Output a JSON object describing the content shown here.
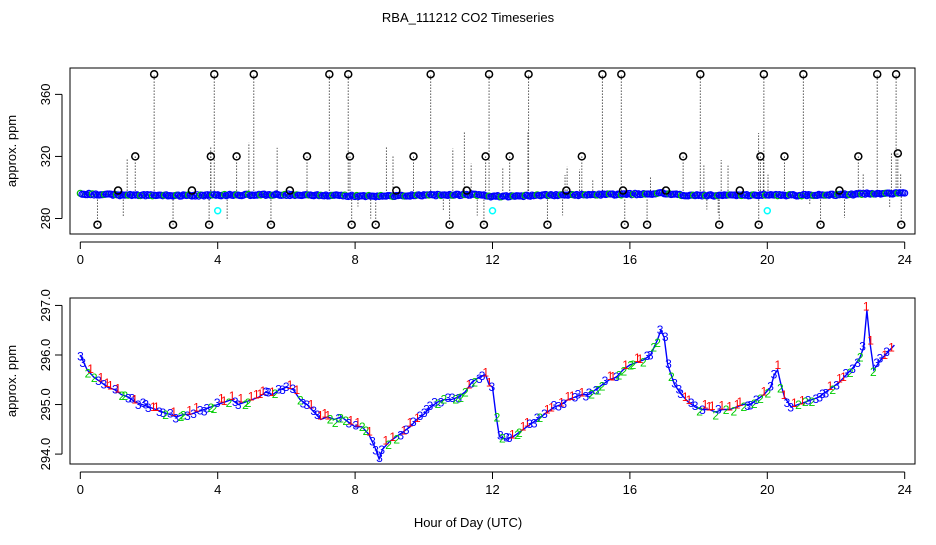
{
  "title": "RBA_111212  CO2 Timeseries",
  "xlabel": "Hour of Day (UTC)",
  "colors": {
    "axis": "#000000",
    "line": "#0000ff",
    "spike": "#000000",
    "open_circle": "#000000",
    "circle_series": "#0000ff",
    "circle_series_alt": "#00c000",
    "cyan_marker": "#00ffff",
    "label_1": "#ff0000",
    "label_2": "#00cc00",
    "label_3": "#0000ff"
  },
  "chart_data": [
    {
      "type": "scatter",
      "ylabel": "approx. ppm",
      "xlim": [
        -0.3,
        24.3
      ],
      "ylim": [
        270,
        377
      ],
      "xticks": [
        0,
        4,
        8,
        12,
        16,
        20,
        24
      ],
      "yticks": [
        280,
        320,
        360
      ],
      "baseline": 296,
      "spike_top": 373,
      "spike_bottom": 276,
      "series": [
        {
          "kind": "dense-baseline",
          "x": [
            0.0,
            0.5,
            1.0,
            1.5,
            2.0,
            2.5,
            3.0,
            3.5,
            4.0,
            4.5,
            5.0,
            5.5,
            6.0,
            6.5,
            7.0,
            7.5,
            8.0,
            8.5,
            9.0,
            9.5,
            10.0,
            10.5,
            11.0,
            11.5,
            12.0,
            12.5,
            13.0,
            13.5,
            14.0,
            14.5,
            15.0,
            15.5,
            16.0,
            16.5,
            17.0,
            17.5,
            18.0,
            18.5,
            19.0,
            19.5,
            20.0,
            20.5,
            21.0,
            21.5,
            22.0,
            22.5,
            23.0,
            23.5,
            23.8
          ],
          "y": [
            296,
            295.5,
            295.2,
            295,
            295,
            294.8,
            294.8,
            294.9,
            295,
            295.1,
            295.2,
            295.3,
            295.3,
            295.1,
            294.9,
            294.8,
            294.5,
            294.3,
            294.5,
            294.8,
            295.0,
            295.1,
            295.2,
            295.4,
            294.2,
            294.4,
            294.7,
            295.0,
            295.1,
            295.2,
            295.3,
            295.4,
            295.7,
            295.9,
            296.3,
            295.1,
            294.9,
            294.9,
            294.9,
            295.0,
            295.3,
            294.9,
            295.0,
            295.1,
            295.3,
            295.5,
            296.2,
            296.0,
            296.2
          ]
        },
        {
          "kind": "spikes",
          "x": [
            0.5,
            1.1,
            1.6,
            2.15,
            2.7,
            3.25,
            3.75,
            3.8,
            3.9,
            4.55,
            5.05,
            5.55,
            6.1,
            6.6,
            7.25,
            7.8,
            7.85,
            7.9,
            8.6,
            9.2,
            9.7,
            10.2,
            10.75,
            11.25,
            11.75,
            11.8,
            11.9,
            12.5,
            13.05,
            13.6,
            14.15,
            14.6,
            15.2,
            15.75,
            15.8,
            15.85,
            16.5,
            17.05,
            17.55,
            18.05,
            18.6,
            19.2,
            19.75,
            19.8,
            19.9,
            20.5,
            21.05,
            21.55,
            22.1,
            22.65,
            23.2,
            23.75,
            23.8,
            23.9
          ],
          "y": [
            276,
            298,
            320,
            373,
            276,
            298,
            276,
            320,
            373,
            320,
            373,
            276,
            298,
            320,
            373,
            373,
            320,
            276,
            276,
            298,
            320,
            373,
            276,
            298,
            276,
            320,
            373,
            320,
            373,
            276,
            298,
            320,
            373,
            373,
            298,
            276,
            276,
            298,
            320,
            373,
            276,
            298,
            276,
            320,
            373,
            320,
            373,
            276,
            298,
            320,
            373,
            373,
            322,
            276
          ]
        },
        {
          "kind": "cyan-markers",
          "x": [
            4.0,
            12.0,
            20.0
          ],
          "y": [
            285,
            285,
            285
          ]
        }
      ]
    },
    {
      "type": "line",
      "ylabel": "approx. ppm",
      "xlim": [
        -0.3,
        24.3
      ],
      "ylim": [
        293.8,
        297.15
      ],
      "xticks": [
        0,
        4,
        8,
        12,
        16,
        20,
        24
      ],
      "yticks": [
        294.0,
        295.0,
        296.0,
        297.0
      ],
      "series": [
        {
          "kind": "co2-line",
          "x": [
            0.0,
            0.2,
            0.4,
            0.6,
            0.8,
            1.0,
            1.2,
            1.4,
            1.6,
            1.8,
            2.0,
            2.2,
            2.4,
            2.6,
            2.8,
            3.0,
            3.2,
            3.4,
            3.6,
            3.8,
            4.0,
            4.2,
            4.4,
            4.6,
            4.8,
            5.0,
            5.2,
            5.4,
            5.6,
            5.8,
            6.0,
            6.2,
            6.4,
            6.6,
            6.8,
            7.0,
            7.2,
            7.4,
            7.6,
            7.8,
            8.0,
            8.2,
            8.4,
            8.6,
            8.7,
            8.8,
            9.0,
            9.2,
            9.4,
            9.6,
            9.8,
            10.0,
            10.2,
            10.4,
            10.6,
            10.8,
            11.0,
            11.2,
            11.4,
            11.6,
            11.8,
            11.9,
            12.0,
            12.1,
            12.2,
            12.4,
            12.6,
            12.8,
            13.0,
            13.2,
            13.4,
            13.6,
            13.8,
            14.0,
            14.2,
            14.4,
            14.6,
            14.8,
            15.0,
            15.2,
            15.4,
            15.6,
            15.8,
            16.0,
            16.2,
            16.4,
            16.6,
            16.8,
            16.9,
            17.0,
            17.1,
            17.3,
            17.5,
            17.7,
            17.9,
            18.1,
            18.3,
            18.5,
            18.7,
            18.9,
            19.1,
            19.3,
            19.5,
            19.7,
            19.9,
            20.1,
            20.2,
            20.3,
            20.4,
            20.5,
            20.7,
            20.9,
            21.1,
            21.3,
            21.5,
            21.7,
            21.9,
            22.1,
            22.3,
            22.5,
            22.6,
            22.7,
            22.8,
            22.9,
            23.0,
            23.1,
            23.3,
            23.5,
            23.7
          ],
          "y": [
            296.0,
            295.7,
            295.55,
            295.45,
            295.35,
            295.3,
            295.2,
            295.15,
            295.05,
            295.0,
            294.95,
            294.9,
            294.85,
            294.8,
            294.75,
            294.8,
            294.8,
            294.85,
            294.9,
            294.95,
            295.0,
            295.05,
            295.1,
            295.0,
            295.05,
            295.1,
            295.15,
            295.25,
            295.2,
            295.3,
            295.35,
            295.3,
            295.1,
            295.0,
            294.85,
            294.7,
            294.75,
            294.7,
            294.75,
            294.65,
            294.55,
            294.55,
            294.4,
            294.1,
            293.9,
            294.1,
            294.25,
            294.35,
            294.45,
            294.55,
            294.7,
            294.8,
            294.95,
            295.05,
            295.1,
            295.1,
            295.15,
            295.25,
            295.45,
            295.55,
            295.6,
            295.4,
            295.35,
            294.8,
            294.35,
            294.3,
            294.35,
            294.45,
            294.55,
            294.65,
            294.75,
            294.85,
            294.95,
            295.0,
            295.1,
            295.15,
            295.2,
            295.2,
            295.3,
            295.4,
            295.5,
            295.55,
            295.7,
            295.8,
            295.85,
            295.9,
            296.0,
            296.3,
            296.5,
            296.35,
            295.8,
            295.4,
            295.2,
            295.05,
            294.95,
            294.9,
            294.9,
            294.85,
            294.9,
            294.9,
            294.95,
            295.0,
            295.0,
            295.1,
            295.2,
            295.35,
            295.6,
            295.7,
            295.4,
            295.15,
            294.95,
            295.0,
            295.05,
            295.1,
            295.15,
            295.25,
            295.35,
            295.45,
            295.6,
            295.75,
            295.85,
            295.95,
            296.15,
            296.9,
            296.2,
            295.7,
            295.9,
            296.05,
            296.2
          ]
        }
      ]
    }
  ]
}
